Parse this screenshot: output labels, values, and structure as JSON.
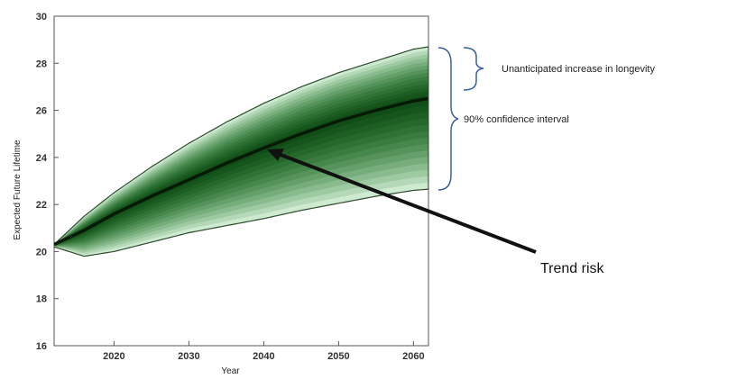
{
  "chart_data": {
    "type": "area",
    "title": "",
    "xlabel": "Year",
    "ylabel": "Expected Future Lifetime",
    "xlim": [
      2012,
      2062
    ],
    "ylim": [
      16,
      30
    ],
    "x_ticks": [
      2020,
      2030,
      2040,
      2050,
      2060
    ],
    "y_ticks": [
      16,
      18,
      20,
      22,
      24,
      26,
      28,
      30
    ],
    "grid": false,
    "fan_color": "#1f9e2a",
    "x": [
      2012,
      2016,
      2020,
      2025,
      2030,
      2035,
      2040,
      2045,
      2050,
      2055,
      2060,
      2062
    ],
    "series": [
      {
        "role": "upper",
        "values": [
          20.3,
          21.5,
          22.5,
          23.6,
          24.6,
          25.5,
          26.3,
          27.0,
          27.6,
          28.1,
          28.6,
          28.7
        ]
      },
      {
        "role": "median",
        "values": [
          20.3,
          20.9,
          21.6,
          22.35,
          23.05,
          23.75,
          24.4,
          25.0,
          25.55,
          26.0,
          26.4,
          26.5
        ]
      },
      {
        "role": "lower",
        "values": [
          20.2,
          19.8,
          20.0,
          20.4,
          20.8,
          21.1,
          21.4,
          21.75,
          22.05,
          22.35,
          22.6,
          22.65
        ]
      }
    ],
    "annotations": {
      "unanticipated": "Unanticipated increase in longevity",
      "confidence": "90% confidence interval",
      "trend_risk": "Trend risk"
    }
  }
}
